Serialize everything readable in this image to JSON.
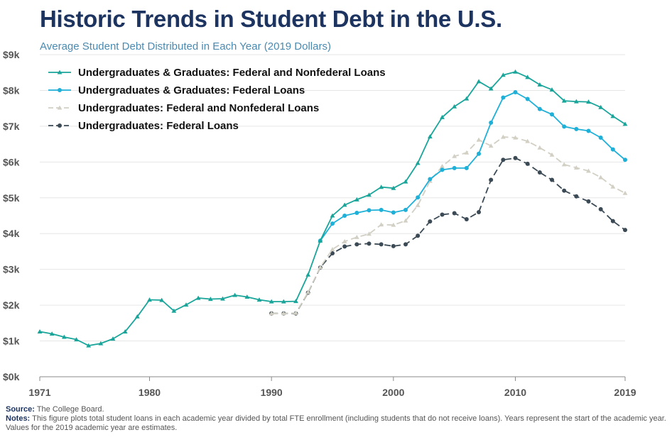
{
  "title": "Historic Trends in Student Debt in the U.S.",
  "subtitle": "Average Student Debt Distributed in Each Year (2019 Dollars)",
  "footer": {
    "source_label": "Source:",
    "source_text": "The College Board.",
    "notes_label": "Notes:",
    "notes_text": "This figure plots total student loans in each academic year divided by total FTE enrollment (including students that do not receive loans). Years represent the start of the academic year. Values for the 2019 academic year are estimates."
  },
  "chart_data": {
    "type": "line",
    "title": "Historic Trends in Student Debt in the U.S.",
    "subtitle": "Average Student Debt Distributed in Each Year (2019 Dollars)",
    "xlabel": "",
    "ylabel": "",
    "xlim": [
      1971,
      2019
    ],
    "ylim": [
      0,
      9000
    ],
    "x_ticks": [
      1971,
      1980,
      1990,
      2000,
      2010,
      2019
    ],
    "y_ticks": [
      0,
      1000,
      2000,
      3000,
      4000,
      5000,
      6000,
      7000,
      8000,
      9000
    ],
    "y_tick_labels": [
      "$0k",
      "$1k",
      "$2k",
      "$3k",
      "$4k",
      "$5k",
      "$6k",
      "$7k",
      "$8k",
      "$9k"
    ],
    "grid": "horizontal",
    "legend": "top-left",
    "series": [
      {
        "name": "Undergraduates & Graduates: Federal and Nonfederal Loans",
        "color": "#1aa59a",
        "marker": "triangle",
        "dash": "solid",
        "x": [
          1971,
          1972,
          1973,
          1974,
          1975,
          1976,
          1977,
          1978,
          1979,
          1980,
          1981,
          1982,
          1983,
          1984,
          1985,
          1986,
          1987,
          1988,
          1989,
          1990,
          1991,
          1992,
          1993,
          1994,
          1995,
          1996,
          1997,
          1998,
          1999,
          2000,
          2001,
          2002,
          2003,
          2004,
          2005,
          2006,
          2007,
          2008,
          2009,
          2010,
          2011,
          2012,
          2013,
          2014,
          2015,
          2016,
          2017,
          2018,
          2019
        ],
        "values": [
          1260,
          1200,
          1110,
          1040,
          870,
          930,
          1060,
          1260,
          1680,
          2150,
          2140,
          1840,
          2010,
          2200,
          2170,
          2180,
          2280,
          2230,
          2150,
          2100,
          2100,
          2110,
          2850,
          3800,
          4500,
          4800,
          4950,
          5080,
          5300,
          5270,
          5450,
          5970,
          6710,
          7250,
          7550,
          7770,
          8250,
          8050,
          8430,
          8520,
          8370,
          8160,
          8020,
          7710,
          7690,
          7680,
          7530,
          7280,
          7060
        ]
      },
      {
        "name": "Undergraduates & Graduates: Federal Loans",
        "color": "#1fb0d8",
        "marker": "circle",
        "dash": "solid",
        "x": [
          1994,
          1995,
          1996,
          1997,
          1998,
          1999,
          2000,
          2001,
          2002,
          2003,
          2004,
          2005,
          2006,
          2007,
          2008,
          2009,
          2010,
          2011,
          2012,
          2013,
          2014,
          2015,
          2016,
          2017,
          2018,
          2019
        ],
        "values": [
          3800,
          4280,
          4500,
          4580,
          4650,
          4660,
          4590,
          4660,
          5010,
          5520,
          5780,
          5830,
          5830,
          6230,
          7100,
          7800,
          7950,
          7760,
          7480,
          7330,
          6990,
          6920,
          6870,
          6680,
          6350,
          6060
        ]
      },
      {
        "name": "Undergraduates: Federal and Nonfederal Loans",
        "color": "#d2cfc4",
        "marker": "triangle",
        "dash": "dashed",
        "x": [
          1990,
          1991,
          1992,
          1993,
          1994,
          1995,
          1996,
          1997,
          1998,
          1999,
          2000,
          2001,
          2002,
          2003,
          2004,
          2005,
          2006,
          2007,
          2008,
          2009,
          2010,
          2011,
          2012,
          2013,
          2014,
          2015,
          2016,
          2017,
          2018,
          2019
        ],
        "values": [
          1770,
          1770,
          1780,
          2360,
          3060,
          3560,
          3780,
          3900,
          3990,
          4250,
          4240,
          4360,
          4790,
          5470,
          5880,
          6160,
          6260,
          6620,
          6450,
          6700,
          6680,
          6580,
          6400,
          6200,
          5930,
          5840,
          5750,
          5570,
          5310,
          5130
        ]
      },
      {
        "name": "Undergraduates: Federal Loans",
        "color": "#3b4a55",
        "marker": "circle",
        "dash": "dashed",
        "x": [
          1990,
          1991,
          1992,
          1993,
          1994,
          1995,
          1996,
          1997,
          1998,
          1999,
          2000,
          2001,
          2002,
          2003,
          2004,
          2005,
          2006,
          2007,
          2008,
          2009,
          2010,
          2011,
          2012,
          2013,
          2014,
          2015,
          2016,
          2017,
          2018,
          2019
        ],
        "values": [
          1770,
          1770,
          1770,
          2350,
          3050,
          3450,
          3640,
          3700,
          3720,
          3700,
          3650,
          3700,
          3940,
          4340,
          4530,
          4570,
          4400,
          4600,
          5500,
          6060,
          6110,
          5950,
          5710,
          5500,
          5200,
          5040,
          4900,
          4680,
          4350,
          4100
        ]
      }
    ]
  }
}
